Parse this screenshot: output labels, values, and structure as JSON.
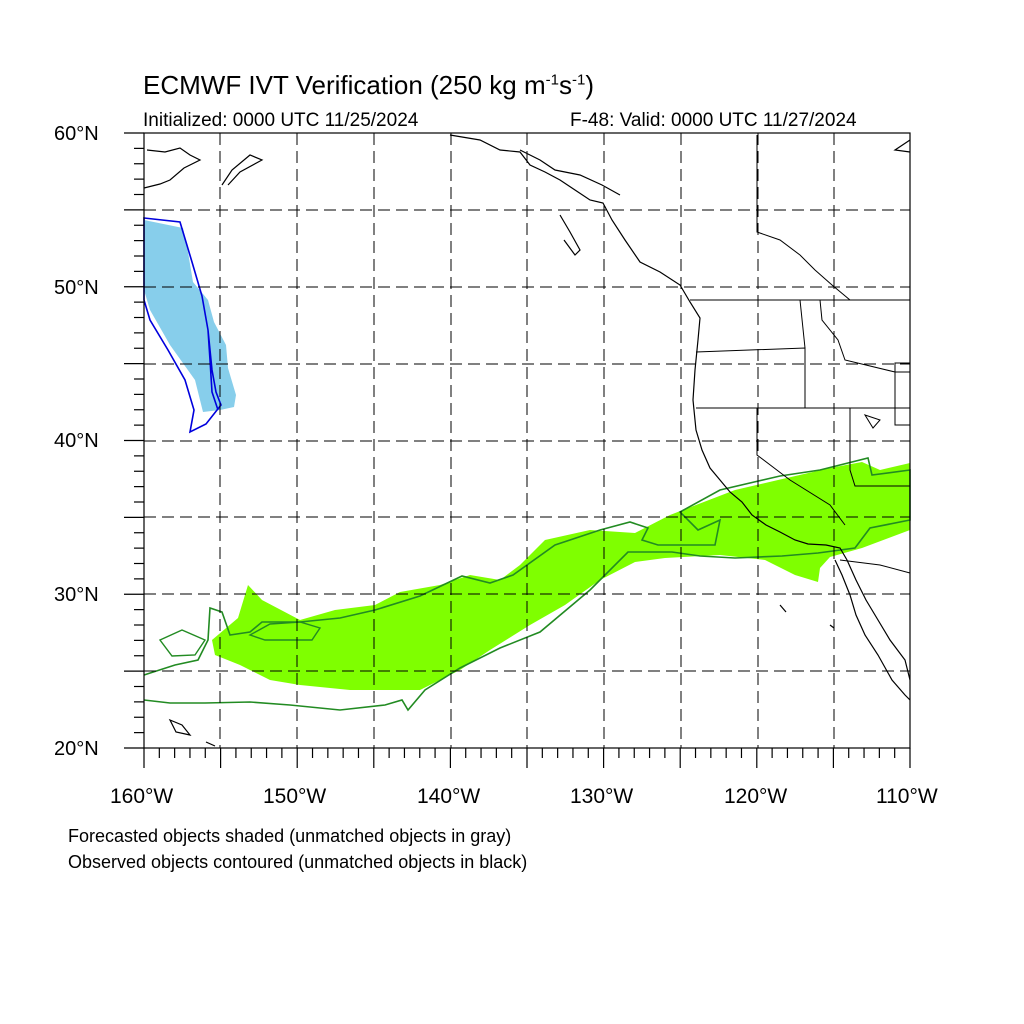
{
  "title": {
    "prefix": "ECMWF IVT Verification (250 kg m",
    "exp1": "-1",
    "mid": "s",
    "exp2": "-1",
    "suffix": ")"
  },
  "initialized": "Initialized: 0000 UTC 11/25/2024",
  "valid": "F-48: Valid: 0000 UTC 11/27/2024",
  "lat_labels": [
    "60°N",
    "50°N",
    "40°N",
    "30°N",
    "20°N"
  ],
  "lon_labels": [
    "160°W",
    "150°W",
    "140°W",
    "130°W",
    "120°W",
    "110°W"
  ],
  "notes": [
    "Forecasted objects shaded (unmatched objects in gray)",
    "Observed objects contoured (unmatched objects in black)"
  ],
  "map": {
    "lon_range": [
      -160,
      -110
    ],
    "lat_range": [
      20,
      60
    ],
    "grid_lon_step": 5,
    "grid_lat_step": 5,
    "gridlines": "dashed"
  },
  "colors": {
    "forecast_object_1": "#87ceeb",
    "observed_object_1": "#0000dd",
    "forecast_object_2": "#7fff00",
    "observed_object_2": "#228b22",
    "coastline": "#000000"
  }
}
